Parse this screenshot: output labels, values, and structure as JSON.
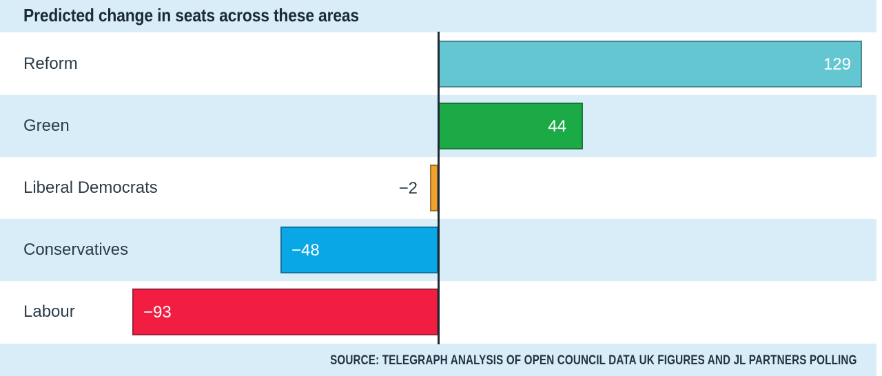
{
  "header": {
    "title": "Predicted change in seats across these areas"
  },
  "footer": {
    "source": "SOURCE: TELEGRAPH ANALYSIS OF OPEN COUNCIL DATA UK FIGURES AND JL PARTNERS POLLING"
  },
  "colors": {
    "band_blue": "#d9edf9",
    "title_text": "#1c2a38",
    "label_text": "#2b3b48",
    "axis_line": "#1d2935",
    "reform": "#63c6d0",
    "green": "#1caa47",
    "libdem": "#f0a22e",
    "conservative": "#0aa7e6",
    "labour": "#f11e42"
  },
  "chart_data": {
    "type": "bar",
    "orientation": "horizontal",
    "title": "Predicted change in seats across these areas",
    "xlabel": "",
    "ylabel": "",
    "categories": [
      "Reform",
      "Green",
      "Liberal Democrats",
      "Conservatives",
      "Labour"
    ],
    "values": [
      129,
      44,
      -2,
      -48,
      -93
    ],
    "xlim": [
      -133,
      135
    ],
    "grid": false,
    "legend": false,
    "zero_baseline": true,
    "rows": [
      {
        "label": "Reform",
        "value": 129,
        "value_label": "129",
        "color": "#63c6d0",
        "label_placement": "inside-right",
        "row_bg": "white"
      },
      {
        "label": "Green",
        "value": 44,
        "value_label": "44",
        "color": "#1caa47",
        "label_placement": "inside-right",
        "row_bg": "blue"
      },
      {
        "label": "Liberal Democrats",
        "value": -2,
        "value_label": "−2",
        "color": "#f0a22e",
        "label_placement": "outside-left",
        "row_bg": "white"
      },
      {
        "label": "Conservatives",
        "value": -48,
        "value_label": "−48",
        "color": "#0aa7e6",
        "label_placement": "inside-left",
        "row_bg": "blue"
      },
      {
        "label": "Labour",
        "value": -93,
        "value_label": "−93",
        "color": "#f11e42",
        "label_placement": "inside-left",
        "row_bg": "white"
      }
    ]
  }
}
